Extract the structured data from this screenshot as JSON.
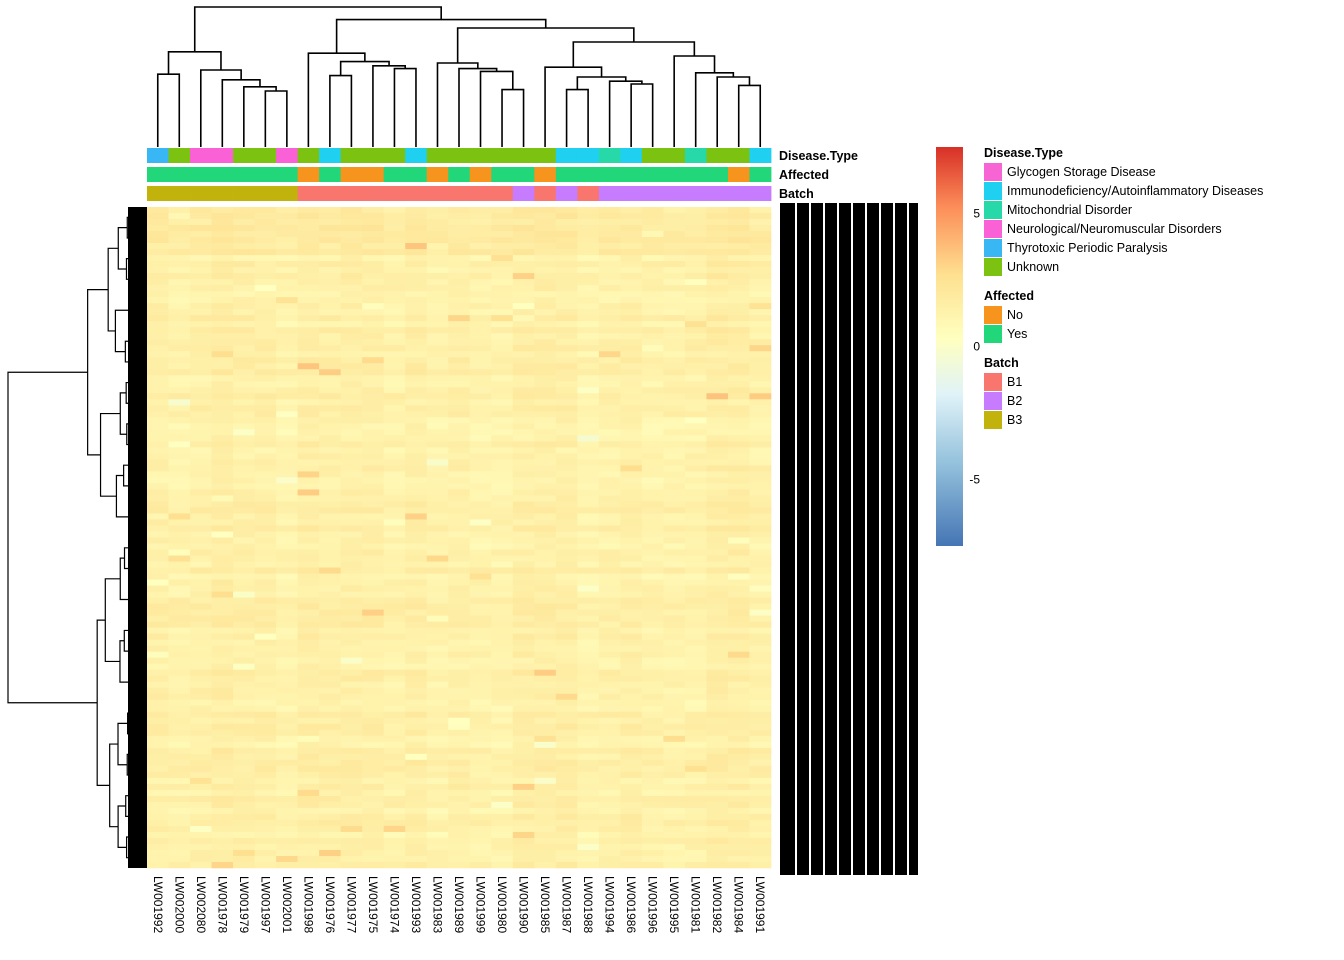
{
  "chart_data": {
    "type": "heatmap",
    "title": "",
    "columns": [
      "LW001992",
      "LW002000",
      "LW002080",
      "LW001978",
      "LW001979",
      "LW001997",
      "LW002001",
      "LW001998",
      "LW001976",
      "LW001977",
      "LW001975",
      "LW001974",
      "LW001993",
      "LW001983",
      "LW001989",
      "LW001999",
      "LW001980",
      "LW001990",
      "LW001985",
      "LW001987",
      "LW001988",
      "LW001994",
      "LW001986",
      "LW001996",
      "LW001995",
      "LW001981",
      "LW001982",
      "LW001984",
      "LW001991"
    ],
    "color_scale": {
      "min": -7.5,
      "max": 7.5,
      "ticks": [
        5,
        0,
        -5
      ],
      "stops": [
        "#4575b4",
        "#91bfdb",
        "#e0f3f8",
        "#ffffbf",
        "#fee090",
        "#fc8d59",
        "#d73027"
      ]
    },
    "annotations": [
      {
        "name": "Disease.Type",
        "values": [
          "Thyrotoxic Periodic Paralysis",
          "Unknown",
          "Neurological/Neuromuscular Disorders",
          "Neurological/Neuromuscular Disorders",
          "Unknown",
          "Unknown",
          "Neurological/Neuromuscular Disorders",
          "Unknown",
          "Immunodeficiency/Autoinflammatory Diseases",
          "Unknown",
          "Unknown",
          "Unknown",
          "Immunodeficiency/Autoinflammatory Diseases",
          "Unknown",
          "Unknown",
          "Unknown",
          "Unknown",
          "Unknown",
          "Unknown",
          "Immunodeficiency/Autoinflammatory Diseases",
          "Immunodeficiency/Autoinflammatory Diseases",
          "Mitochondrial Disorder",
          "Immunodeficiency/Autoinflammatory Diseases",
          "Unknown",
          "Unknown",
          "Mitochondrial Disorder",
          "Unknown",
          "Unknown",
          "Immunodeficiency/Autoinflammatory Diseases"
        ]
      },
      {
        "name": "Affected",
        "values": [
          "Yes",
          "Yes",
          "Yes",
          "Yes",
          "Yes",
          "Yes",
          "Yes",
          "No",
          "Yes",
          "No",
          "No",
          "Yes",
          "Yes",
          "No",
          "Yes",
          "No",
          "Yes",
          "Yes",
          "No",
          "Yes",
          "Yes",
          "Yes",
          "Yes",
          "Yes",
          "Yes",
          "Yes",
          "Yes",
          "No",
          "Yes"
        ]
      },
      {
        "name": "Batch",
        "values": [
          "B3",
          "B3",
          "B3",
          "B3",
          "B3",
          "B3",
          "B3",
          "B1",
          "B1",
          "B1",
          "B1",
          "B1",
          "B1",
          "B1",
          "B1",
          "B1",
          "B1",
          "B2",
          "B1",
          "B2",
          "B1",
          "B2",
          "B2",
          "B2",
          "B2",
          "B2",
          "B2",
          "B2",
          "B2"
        ]
      }
    ],
    "legends": [
      {
        "title": "Disease.Type",
        "items": [
          {
            "label": "Glycogen Storage Disease",
            "color": "#f765d5"
          },
          {
            "label": "Immunodeficiency/Autoinflammatory Diseases",
            "color": "#1fd0f0"
          },
          {
            "label": "Mitochondrial Disorder",
            "color": "#27d9a9"
          },
          {
            "label": "Neurological/Neuromuscular Disorders",
            "color": "#fb61d7"
          },
          {
            "label": "Thyrotoxic Periodic Paralysis",
            "color": "#39b6f4"
          },
          {
            "label": "Unknown",
            "color": "#7cc211"
          }
        ]
      },
      {
        "title": "Affected",
        "items": [
          {
            "label": "No",
            "color": "#f7941d"
          },
          {
            "label": "Yes",
            "color": "#22d67a"
          }
        ]
      },
      {
        "title": "Batch",
        "items": [
          {
            "label": "B1",
            "color": "#f8766d"
          },
          {
            "label": "B2",
            "color": "#c77cff"
          },
          {
            "label": "B3",
            "color": "#c2b30c"
          }
        ]
      }
    ],
    "column_dendrogram": [
      {
        "a": 0,
        "b": 1,
        "h": 0.52
      },
      {
        "a": 5,
        "b": 6,
        "h": 0.4
      },
      {
        "a": 4,
        "b": "m1",
        "h": 0.43
      },
      {
        "a": 3,
        "b": "m2",
        "h": 0.48
      },
      {
        "a": 2,
        "b": "m3",
        "h": 0.55
      },
      {
        "a": "m0",
        "b": "m4",
        "h": 0.68
      },
      {
        "a": 8,
        "b": 9,
        "h": 0.51
      },
      {
        "a": 11,
        "b": 12,
        "h": 0.56
      },
      {
        "a": 10,
        "b": "m7",
        "h": 0.58
      },
      {
        "a": "m6",
        "b": "m8",
        "h": 0.61
      },
      {
        "a": 7,
        "b": "m9",
        "h": 0.67
      },
      {
        "a": 16,
        "b": 17,
        "h": 0.41
      },
      {
        "a": 15,
        "b": "m11",
        "h": 0.54
      },
      {
        "a": 14,
        "b": "m12",
        "h": 0.56
      },
      {
        "a": 13,
        "b": "m13",
        "h": 0.6
      },
      {
        "a": 19,
        "b": 20,
        "h": 0.41
      },
      {
        "a": 22,
        "b": 23,
        "h": 0.45
      },
      {
        "a": 21,
        "b": "m16",
        "h": 0.47
      },
      {
        "a": "m15",
        "b": "m17",
        "h": 0.5
      },
      {
        "a": 18,
        "b": "m18",
        "h": 0.57
      },
      {
        "a": 27,
        "b": 28,
        "h": 0.44
      },
      {
        "a": 26,
        "b": "m20",
        "h": 0.5
      },
      {
        "a": 25,
        "b": "m21",
        "h": 0.53
      },
      {
        "a": 24,
        "b": "m22",
        "h": 0.65
      },
      {
        "a": "m19",
        "b": "m23",
        "h": 0.75
      },
      {
        "a": "m14",
        "b": "m24",
        "h": 0.85
      },
      {
        "a": "m10",
        "b": "m25",
        "h": 0.91
      },
      {
        "a": "m5",
        "b": "m26",
        "h": 1.0
      }
    ]
  }
}
